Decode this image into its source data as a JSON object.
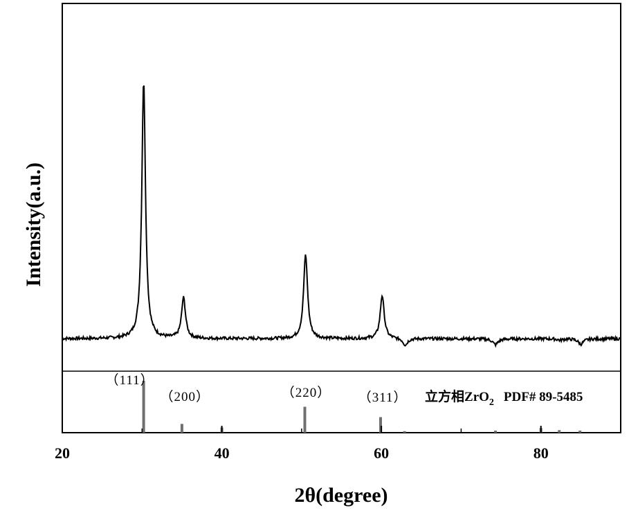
{
  "chart_data": {
    "type": "line",
    "xlabel": "2θ(degree)",
    "ylabel": "Intensity(a.u.)",
    "xlim": [
      20,
      90
    ],
    "x_ticks": [
      "20",
      "40",
      "60",
      "80"
    ],
    "x_tick_values": [
      20,
      40,
      60,
      80
    ],
    "y_ticks_shown": false,
    "grid": false,
    "pattern": {
      "baseline": 5,
      "peaks": [
        {
          "x": 30.2,
          "y": 100,
          "w": 0.28
        },
        {
          "x": 35.2,
          "y": 20,
          "w": 0.3
        },
        {
          "x": 50.5,
          "y": 36,
          "w": 0.3
        },
        {
          "x": 60.1,
          "y": 21,
          "w": 0.3
        },
        {
          "x": 63.0,
          "y": 2.5,
          "w": 0.35
        },
        {
          "x": 74.3,
          "y": 2.8,
          "w": 0.4
        },
        {
          "x": 82.4,
          "y": 4.5,
          "w": 0.35
        },
        {
          "x": 85.0,
          "y": 3,
          "w": 0.4
        }
      ]
    },
    "reference": {
      "label_prefix": "立方相",
      "label_formula": "ZrO",
      "label_subscript": "2",
      "label_pdf": "PDF# 89-5485",
      "sticks": [
        {
          "x": 30.2,
          "h": 100
        },
        {
          "x": 35.0,
          "h": 17
        },
        {
          "x": 40.0,
          "h": 10
        },
        {
          "x": 50.4,
          "h": 50
        },
        {
          "x": 59.9,
          "h": 30
        },
        {
          "x": 62.9,
          "h": 3
        },
        {
          "x": 74.3,
          "h": 4
        },
        {
          "x": 80.0,
          "h": 9
        },
        {
          "x": 82.3,
          "h": 5
        },
        {
          "x": 84.9,
          "h": 4
        }
      ],
      "hkl_labels": [
        {
          "text": "（111）",
          "x": 30.2
        },
        {
          "text": "（200）",
          "x": 35.2
        },
        {
          "text": "（220）",
          "x": 50.4
        },
        {
          "text": "（311）",
          "x": 60.0
        }
      ]
    }
  },
  "colors": {
    "line": "#000000",
    "stick": "#6f6f6f",
    "frame": "#000000"
  }
}
